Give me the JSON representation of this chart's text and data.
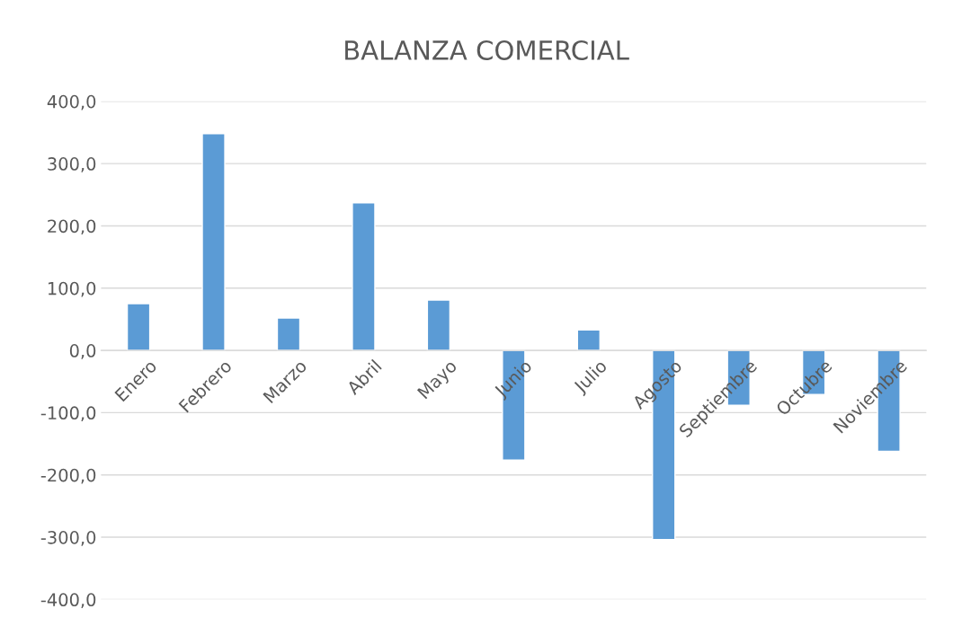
{
  "chart_data": {
    "type": "bar",
    "title": "BALANZA COMERCIAL",
    "categories": [
      "Enero",
      "Febrero",
      "Marzo",
      "Abril",
      "Mayo",
      "Junio",
      "Julio",
      "Agosto",
      "Septiembre",
      "Octubre",
      "Noviembre"
    ],
    "values": [
      75,
      348,
      52,
      237,
      81,
      -176,
      33,
      -304,
      -88,
      -71,
      -162
    ],
    "color": "#5b9bd5",
    "ylim": [
      -400,
      400
    ],
    "yticks": [
      {
        "value": -400,
        "label": "-400,0"
      },
      {
        "value": -300,
        "label": "-300,0"
      },
      {
        "value": -200,
        "label": "-200,0"
      },
      {
        "value": -100,
        "label": "-100,0"
      },
      {
        "value": 0,
        "label": "0,0"
      },
      {
        "value": 100,
        "label": "100,0"
      },
      {
        "value": 200,
        "label": "200,0"
      },
      {
        "value": 300,
        "label": "300,0"
      },
      {
        "value": 400,
        "label": "400,0"
      }
    ],
    "grid": "y",
    "legend": false
  }
}
